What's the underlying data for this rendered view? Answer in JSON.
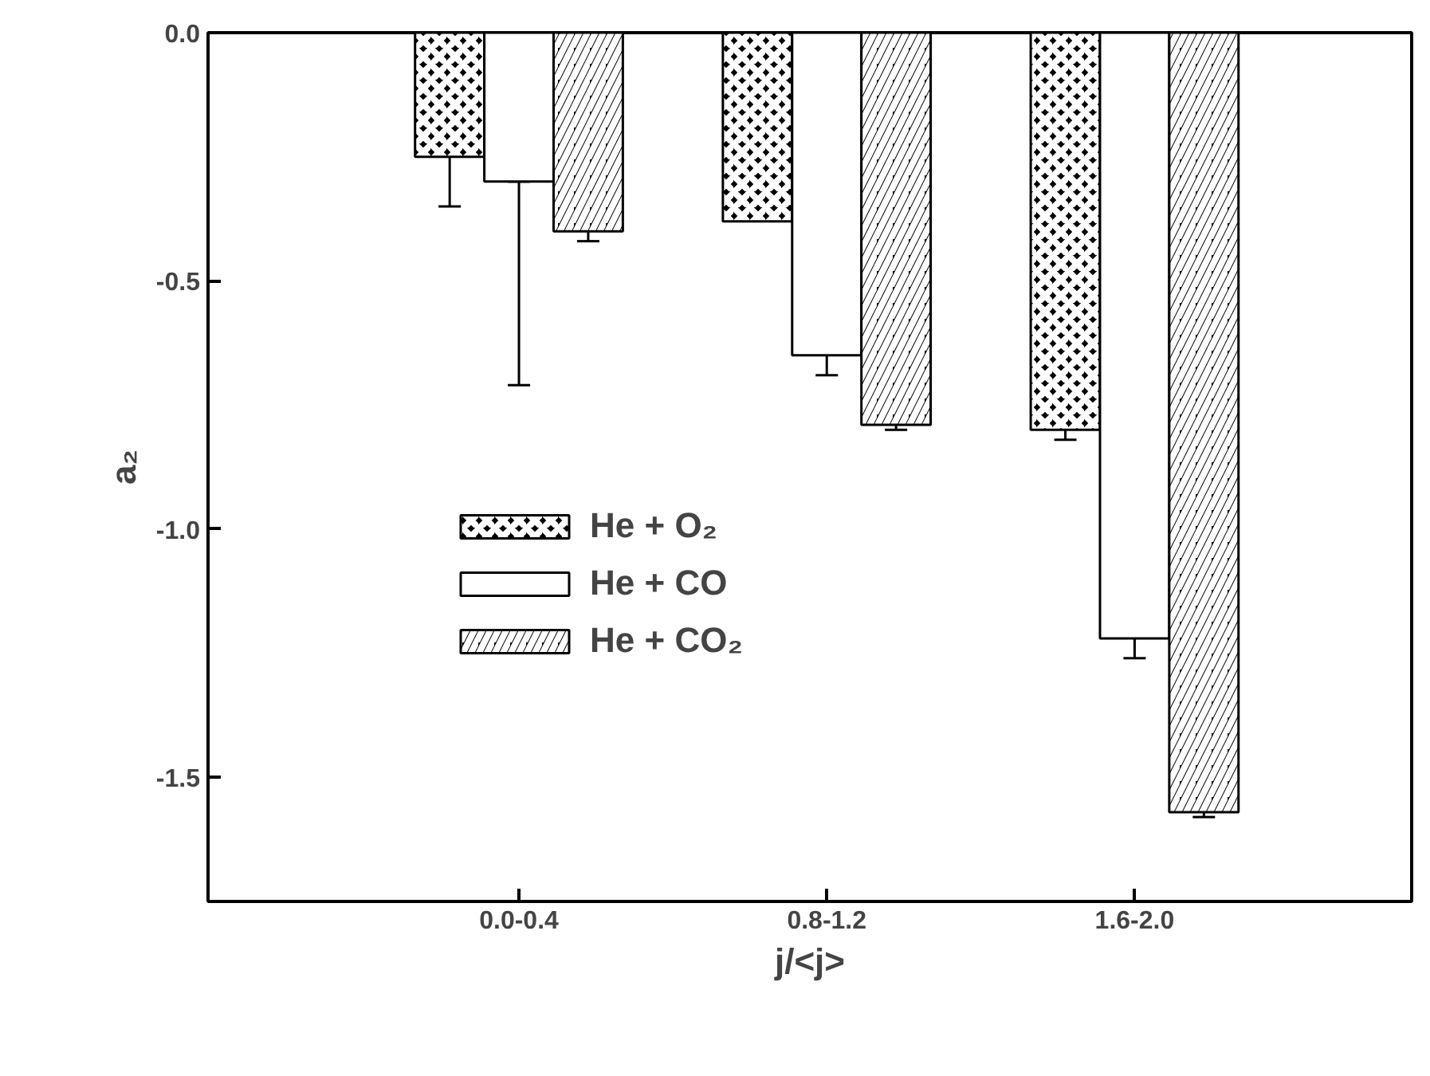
{
  "chart_data": {
    "type": "bar",
    "xlabel": "j/<j>",
    "ylabel": "a₂",
    "categories": [
      "0.0-0.4",
      "0.8-1.2",
      "1.6-2.0"
    ],
    "series": [
      {
        "name": "He + O₂",
        "color": "#000000",
        "values": [
          -0.25,
          -0.38,
          -0.8
        ],
        "errors": [
          [
            -0.35,
            -0.15
          ],
          null,
          0.02
        ]
      },
      {
        "name": "He + CO",
        "color": "#ffffff",
        "values": [
          -0.3,
          -0.65,
          -1.22
        ],
        "errors": [
          [
            -0.71,
            -0.3
          ],
          0.04,
          0.04
        ]
      },
      {
        "name": "He + CO₂",
        "color": "#000000",
        "values": [
          -0.4,
          -0.79,
          -1.57
        ],
        "errors": [
          0.02,
          0.01,
          0.01
        ]
      }
    ],
    "ylim": [
      -1.75,
      0
    ],
    "yticks": [
      {
        "value": 0,
        "label": "0.0"
      },
      {
        "value": -0.5,
        "label": "-0.5"
      },
      {
        "value": -1.0,
        "label": "-1.0"
      },
      {
        "value": -1.5,
        "label": "-1.5"
      }
    ],
    "grid": false,
    "legend": "bottom left"
  }
}
